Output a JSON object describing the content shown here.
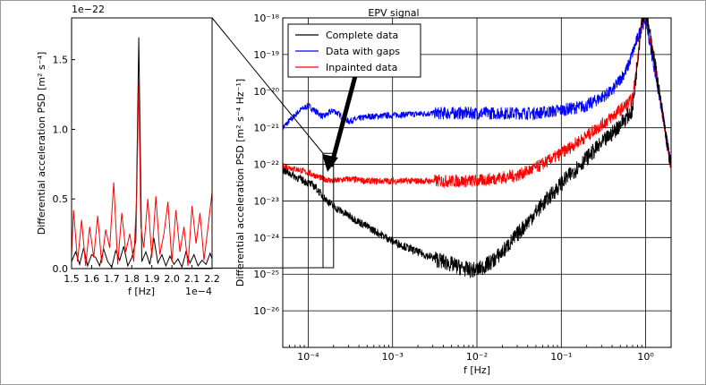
{
  "chart_data": [
    {
      "id": "inset",
      "type": "line",
      "title": "",
      "xlabel": "f [Hz]",
      "ylabel": "Differential acceleration PSD [m² s⁻⁴]",
      "x_offset_label": "1e−4",
      "y_offset_label": "1e−22",
      "xlim": [
        1.5,
        2.2
      ],
      "ylim": [
        0,
        1.8
      ],
      "x_scale_note": "values in units of 1e-4 Hz",
      "y_scale_note": "values in units of 1e-22",
      "xticks": [
        "1.5",
        "1.6",
        "1.7",
        "1.8",
        "1.9",
        "2.0",
        "2.1",
        "2.2"
      ],
      "yticks": [
        "0.0",
        "0.5",
        "1.0",
        "1.5"
      ],
      "series": [
        {
          "name": "Complete data",
          "color": "#000000",
          "x": [
            1.5,
            1.52,
            1.54,
            1.56,
            1.58,
            1.6,
            1.62,
            1.64,
            1.66,
            1.68,
            1.7,
            1.72,
            1.74,
            1.76,
            1.78,
            1.8,
            1.82,
            1.835,
            1.85,
            1.87,
            1.89,
            1.91,
            1.93,
            1.95,
            1.97,
            1.99,
            2.01,
            2.03,
            2.05,
            2.07,
            2.09,
            2.11,
            2.13,
            2.15,
            2.17,
            2.19,
            2.2
          ],
          "values": [
            0.05,
            0.12,
            0.03,
            0.15,
            0.02,
            0.1,
            0.08,
            0.02,
            0.14,
            0.05,
            0.01,
            0.13,
            0.06,
            0.16,
            0.02,
            0.08,
            0.2,
            1.66,
            0.05,
            0.12,
            0.03,
            0.22,
            0.04,
            0.1,
            0.02,
            0.09,
            0.03,
            0.07,
            0.01,
            0.12,
            0.04,
            0.1,
            0.02,
            0.06,
            0.03,
            0.11,
            0.07
          ]
        },
        {
          "name": "Inpainted data",
          "color": "#ff0000",
          "x": [
            1.5,
            1.51,
            1.53,
            1.55,
            1.57,
            1.59,
            1.61,
            1.63,
            1.65,
            1.67,
            1.69,
            1.71,
            1.73,
            1.75,
            1.77,
            1.79,
            1.81,
            1.825,
            1.835,
            1.845,
            1.86,
            1.88,
            1.9,
            1.92,
            1.94,
            1.96,
            1.98,
            2.0,
            2.02,
            2.04,
            2.06,
            2.08,
            2.1,
            2.12,
            2.14,
            2.16,
            2.18,
            2.2
          ],
          "values": [
            0.1,
            0.42,
            0.05,
            0.35,
            0.02,
            0.3,
            0.08,
            0.38,
            0.04,
            0.28,
            0.15,
            0.62,
            0.03,
            0.4,
            0.12,
            0.25,
            0.05,
            0.55,
            1.35,
            0.3,
            0.15,
            0.5,
            0.08,
            0.52,
            0.1,
            0.25,
            0.48,
            0.05,
            0.42,
            0.12,
            0.3,
            0.02,
            0.45,
            0.18,
            0.4,
            0.06,
            0.3,
            0.55
          ]
        }
      ]
    },
    {
      "id": "main",
      "type": "line",
      "title": "EPV signal",
      "xlabel": "f [Hz]",
      "ylabel": "Differential acceleration PSD [m² s⁻⁴ Hz⁻¹]",
      "xscale": "log",
      "yscale": "log",
      "xlim": [
        5e-05,
        2
      ],
      "ylim": [
        1e-27,
        1e-18
      ],
      "grid": true,
      "xtick_labels": [
        "10⁻⁴",
        "10⁻³",
        "10⁻²",
        "10⁻¹",
        "10⁰"
      ],
      "xtick_exponents": [
        -4,
        -3,
        -2,
        -1,
        0
      ],
      "ytick_labels": [
        "10⁻¹⁸",
        "10⁻¹⁹",
        "10⁻²⁰",
        "10⁻²¹",
        "10⁻²²",
        "10⁻²³",
        "10⁻²⁴",
        "10⁻²⁵",
        "10⁻²⁶"
      ],
      "ytick_exponents": [
        -18,
        -19,
        -20,
        -21,
        -22,
        -23,
        -24,
        -25,
        -26
      ],
      "legend_position": "top-left",
      "zoom_box": {
        "x": [
          0.00015,
          0.0002
        ],
        "y": [
          1.5e-25,
          2e-22
        ]
      },
      "series": [
        {
          "name": "Complete data",
          "color": "#000000",
          "x": [
            5e-05,
            8e-05,
            0.00012,
            0.00015,
            0.0002,
            0.0003,
            0.0005,
            0.001,
            0.002,
            0.004,
            0.006,
            0.008,
            0.01,
            0.012,
            0.015,
            0.02,
            0.03,
            0.05,
            0.1,
            0.2,
            0.4,
            0.7,
            0.9,
            1.0,
            1.3,
            1.6,
            2.0
          ],
          "values": [
            7e-23,
            4e-23,
            2.5e-23,
            1.3e-23,
            7e-24,
            4e-24,
            2e-24,
            8e-25,
            4e-25,
            2.2e-25,
            1.6e-25,
            1.3e-25,
            1.3e-25,
            1.6e-25,
            2.2e-25,
            4e-25,
            1.2e-24,
            5e-24,
            3e-23,
            1.5e-22,
            7e-22,
            3e-21,
            1e-18,
            1.5e-18,
            5e-20,
            2e-21,
            8e-23
          ]
        },
        {
          "name": "Data with gaps",
          "color": "#0000ff",
          "x": [
            5e-05,
            8e-05,
            0.0001,
            0.00015,
            0.0002,
            0.0003,
            0.0005,
            0.001,
            0.003,
            0.01,
            0.03,
            0.05,
            0.1,
            0.2,
            0.4,
            0.6,
            0.9,
            1.0,
            1.3,
            1.6,
            2.0
          ],
          "values": [
            1e-21,
            3e-21,
            4e-21,
            2e-21,
            3e-21,
            1.5e-21,
            2e-21,
            2.2e-21,
            2.5e-21,
            2.5e-21,
            2.5e-21,
            2.5e-21,
            3e-21,
            4e-21,
            1e-20,
            4e-20,
            6e-19,
            9e-19,
            3e-20,
            2e-21,
            8e-23
          ]
        },
        {
          "name": "Inpainted data",
          "color": "#ff0000",
          "x": [
            5e-05,
            8e-05,
            0.00012,
            0.00015,
            0.0002,
            0.0003,
            0.0005,
            0.001,
            0.003,
            0.01,
            0.03,
            0.05,
            0.1,
            0.2,
            0.4,
            0.7,
            0.9,
            1.0,
            1.3,
            1.6,
            2.0
          ],
          "values": [
            9e-23,
            7e-23,
            5e-23,
            4e-23,
            3.5e-23,
            4e-23,
            3.5e-23,
            3.5e-23,
            3.5e-23,
            3.5e-23,
            5e-23,
            8e-23,
            2e-22,
            6e-22,
            2e-21,
            6e-21,
            8e-19,
            1.5e-18,
            5e-20,
            2e-21,
            8e-23
          ]
        }
      ]
    }
  ]
}
